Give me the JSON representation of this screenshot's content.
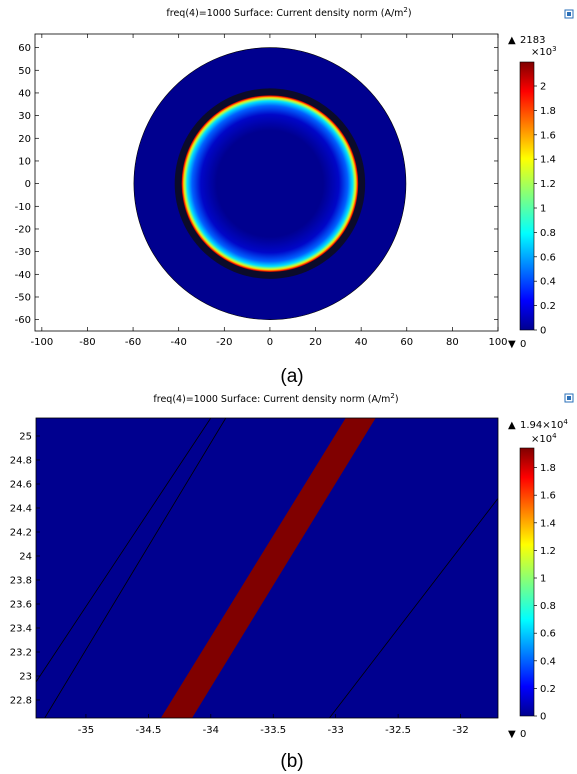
{
  "figure": {
    "colors": {
      "field_blue": "#00008f",
      "ring_dark": "#0b0b2a",
      "conductor_red": "#800000",
      "toolbar_icon": "#2a6fb8"
    },
    "icons": [
      "export-plot-icon"
    ]
  },
  "chart_data": [
    {
      "type": "heatmap",
      "caption": "(a)",
      "title_main": "freq(4)=1000  Surface: Current density norm (A/m",
      "title_sup": "2",
      "title_tail": ")",
      "x_ticks": [
        -100,
        -80,
        -60,
        -40,
        -20,
        0,
        20,
        40,
        60,
        80,
        100
      ],
      "y_ticks": [
        60,
        50,
        40,
        30,
        20,
        10,
        0,
        -10,
        -20,
        -30,
        -40,
        -50,
        -60
      ],
      "xlim": [
        -103,
        100
      ],
      "ylim": [
        -65,
        66
      ],
      "outer_radius": 60,
      "dark_ring_outer_radius": 42,
      "conductor_radius": 39,
      "colorbar": {
        "max_label": "2183",
        "scale_label": "×10",
        "scale_exp": "3",
        "ticks": [
          "2",
          "1.8",
          "1.6",
          "1.4",
          "1.2",
          "1",
          "0.8",
          "0.6",
          "0.4",
          "0.2",
          "0"
        ],
        "min_label": "0",
        "max_marker": "▲",
        "min_marker": "▼",
        "colormap": "jet"
      }
    },
    {
      "type": "heatmap",
      "caption": "(b)",
      "title_main": "freq(4)=1000  Surface: Current density norm (A/m",
      "title_sup": "2",
      "title_tail": ")",
      "x_ticks": [
        -35,
        -34.5,
        -34,
        -33.5,
        -33,
        -32.5,
        -32
      ],
      "y_ticks": [
        25,
        24.8,
        24.6,
        24.4,
        24.2,
        24,
        23.8,
        23.6,
        23.4,
        23.2,
        23,
        22.8
      ],
      "x_tick_labels": [
        "-35",
        "-34.5",
        "-34",
        "-33.5",
        "-33",
        "-32.5",
        "-32"
      ],
      "y_tick_labels": [
        "25",
        "24.8",
        "24.6",
        "24.4",
        "24.2",
        "24",
        "23.8",
        "23.6",
        "23.4",
        "23.2",
        "23",
        "22.8"
      ],
      "xlim": [
        -35.4,
        -31.7
      ],
      "ylim": [
        22.65,
        25.15
      ],
      "conductor_band": {
        "bottom": [
          -34.4,
          -34.15
        ],
        "top": [
          -32.92,
          -32.68
        ]
      },
      "boundary_lines": [
        {
          "from": [
            -35.4,
            22.95
          ],
          "to": [
            -34.0,
            25.15
          ]
        },
        {
          "from": [
            -35.33,
            22.65
          ],
          "to": [
            -33.88,
            25.15
          ]
        },
        {
          "from": [
            -33.05,
            22.65
          ],
          "to": [
            -31.7,
            24.48
          ]
        }
      ],
      "colorbar": {
        "max_label": "1.94×10",
        "max_exp": "4",
        "scale_label": "×10",
        "scale_exp": "4",
        "ticks": [
          "1.8",
          "1.6",
          "1.4",
          "1.2",
          "1",
          "0.8",
          "0.6",
          "0.4",
          "0.2",
          "0"
        ],
        "min_label": "0",
        "max_marker": "▲",
        "min_marker": "▼",
        "colormap": "jet"
      }
    }
  ]
}
